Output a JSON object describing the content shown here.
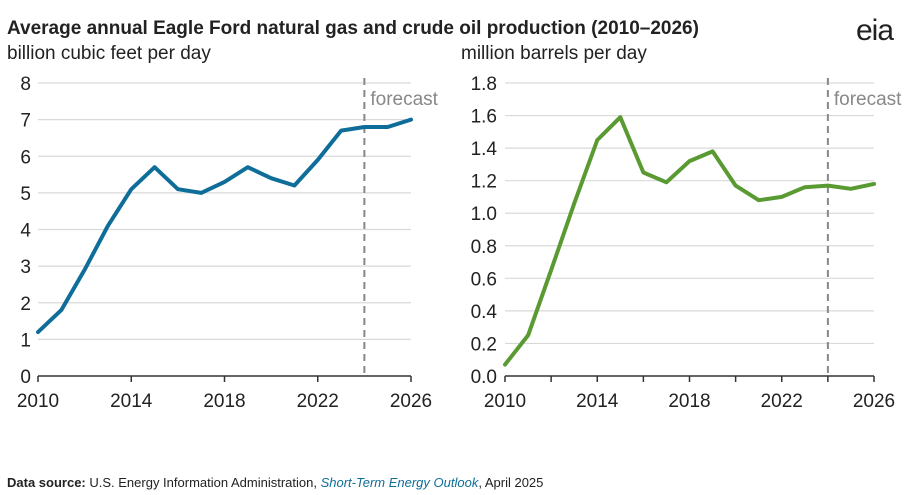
{
  "title": "Average annual Eagle Ford natural gas and crude oil production (2010–2026)",
  "logo_text": "eia",
  "source": {
    "label": "Data source:",
    "text1": " U.S. Energy Information Administration, ",
    "italic": "Short-Term Energy Outlook",
    "text2": ", April 2025"
  },
  "chart_data": [
    {
      "type": "line",
      "title": "Natural gas",
      "ylabel": "billion cubic feet per day",
      "x": [
        2010,
        2011,
        2012,
        2013,
        2014,
        2015,
        2016,
        2017,
        2018,
        2019,
        2020,
        2021,
        2022,
        2023,
        2024,
        2025,
        2026
      ],
      "values": [
        1.2,
        1.8,
        2.9,
        4.1,
        5.1,
        5.7,
        5.1,
        5.0,
        5.3,
        5.7,
        5.4,
        5.2,
        5.9,
        6.7,
        6.8,
        6.8,
        7.0
      ],
      "ylim": [
        0,
        8
      ],
      "yticks": [
        "0",
        "1",
        "2",
        "3",
        "4",
        "5",
        "6",
        "7",
        "8"
      ],
      "xticks": [
        "2010",
        "2014",
        "2018",
        "2022",
        "2026"
      ],
      "minor_xticks": false,
      "forecast_start": 2024,
      "annotation": "forecast",
      "color": "#0f6e99",
      "grid": true
    },
    {
      "type": "line",
      "title": "Crude oil",
      "ylabel": "million barrels per day",
      "x": [
        2010,
        2011,
        2012,
        2013,
        2014,
        2015,
        2016,
        2017,
        2018,
        2019,
        2020,
        2021,
        2022,
        2023,
        2024,
        2025,
        2026
      ],
      "values": [
        0.07,
        0.25,
        0.65,
        1.06,
        1.45,
        1.59,
        1.25,
        1.19,
        1.32,
        1.38,
        1.17,
        1.08,
        1.1,
        1.16,
        1.17,
        1.15,
        1.18
      ],
      "ylim": [
        0,
        1.8
      ],
      "yticks": [
        "0.0",
        "0.2",
        "0.4",
        "0.6",
        "0.8",
        "1.0",
        "1.2",
        "1.4",
        "1.6",
        "1.8"
      ],
      "xticks": [
        "2010",
        "2014",
        "2018",
        "2022",
        "2026"
      ],
      "minor_xticks": true,
      "forecast_start": 2024,
      "annotation": "forecast",
      "color": "#5a9a32",
      "grid": true
    }
  ]
}
